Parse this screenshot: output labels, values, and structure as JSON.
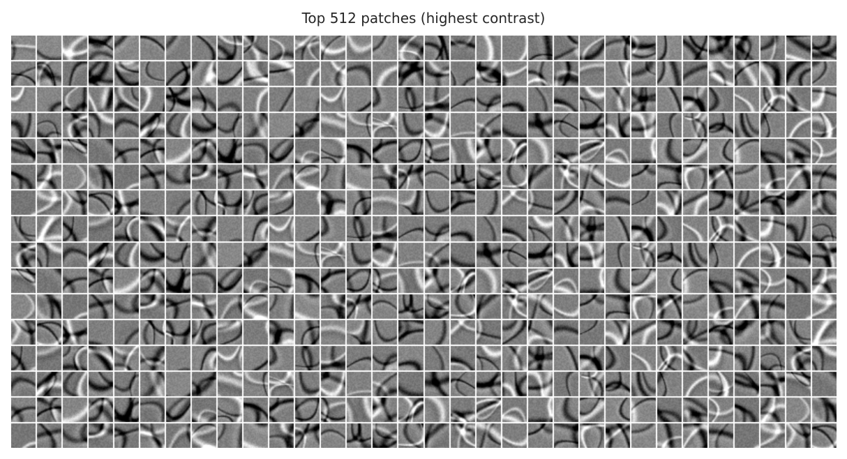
{
  "figure": {
    "title": "Top 512 patches (highest contrast)"
  },
  "patch_grid": {
    "rows": 16,
    "cols": 32,
    "patch_count": 512,
    "colormap": "grayscale",
    "background": "#7f7f7f",
    "separator_color": "#ffffff",
    "title_color": "#262626"
  }
}
